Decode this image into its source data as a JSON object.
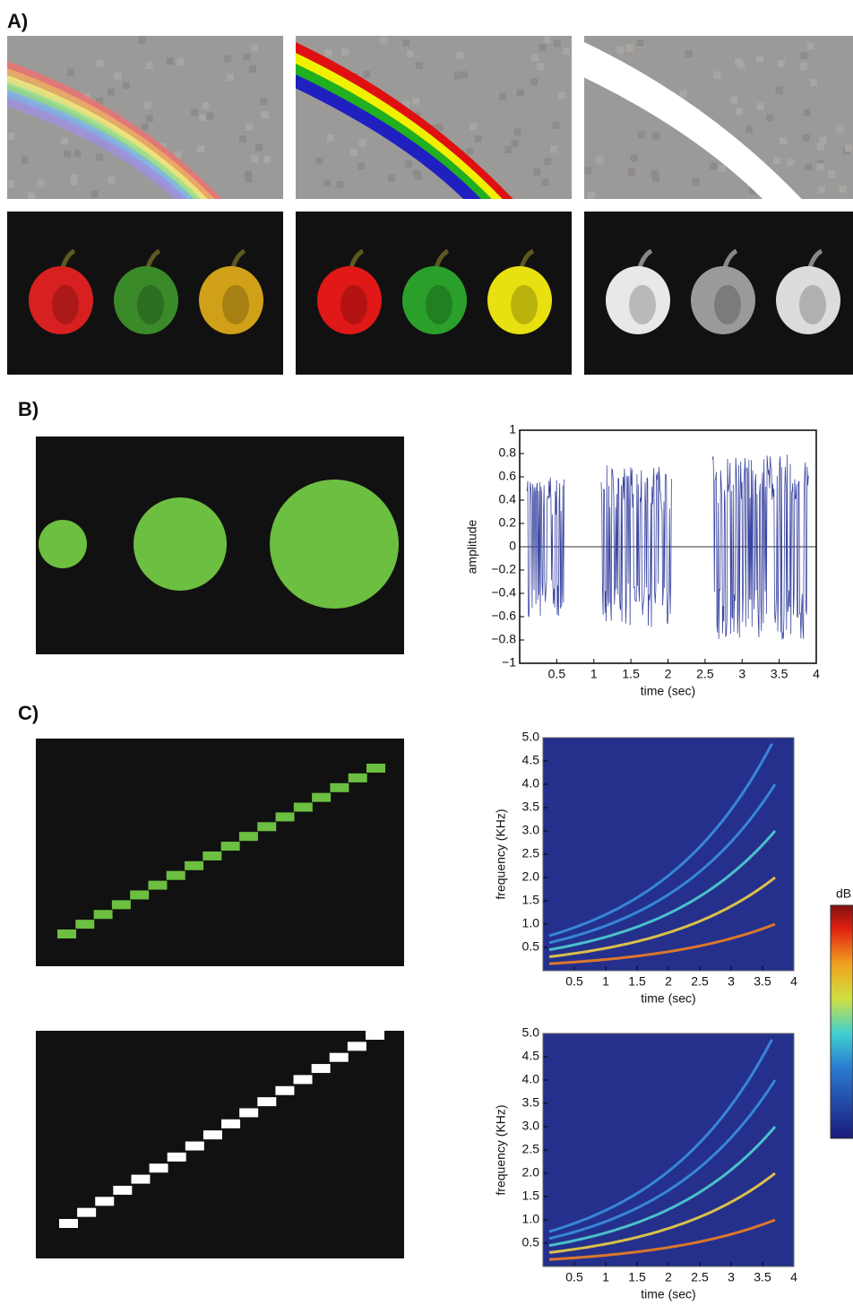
{
  "panels": {
    "a": {
      "label": "A)"
    },
    "b": {
      "label": "B)",
      "waveform": {
        "type": "waveform",
        "xlabel": "time (sec)",
        "ylabel": "amplitude",
        "color": "#3b46a0",
        "xlim": [
          0,
          4
        ],
        "ylim": [
          -1,
          1
        ],
        "xticks": [
          0.5,
          1,
          1.5,
          2,
          2.5,
          3,
          3.5,
          4
        ],
        "yticks": [
          {
            "value": -1,
            "label": "−1"
          },
          {
            "value": -0.8,
            "label": "−0.8"
          },
          {
            "value": -0.6,
            "label": "−0.6"
          },
          {
            "value": -0.4,
            "label": "−0.4"
          },
          {
            "value": -0.2,
            "label": "−0.2"
          },
          0,
          0.2,
          0.4,
          0.6,
          0.8,
          1
        ],
        "bursts": [
          {
            "start": 0.1,
            "end": 0.6,
            "amplitude": 0.6
          },
          {
            "start": 1.1,
            "end": 2.05,
            "amplitude": 0.7
          },
          {
            "start": 2.6,
            "end": 3.9,
            "amplitude": 0.8
          }
        ]
      }
    },
    "c": {
      "label": "C)",
      "spectrograms": [
        {
          "type": "spectrogram",
          "xlabel": "time (sec)",
          "ylabel": "frequency (KHz)",
          "xlim": [
            0,
            4
          ],
          "ylim": [
            0,
            5
          ],
          "xticks": [
            0.5,
            1,
            1.5,
            2,
            2.5,
            3,
            3.5,
            4
          ],
          "yticks": [
            0.5,
            {
              "value": 1,
              "label": "1.0"
            },
            1.5,
            {
              "value": 2,
              "label": "2.0"
            },
            2.5,
            {
              "value": 3,
              "label": "3.0"
            },
            3.5,
            {
              "value": 4,
              "label": "4.0"
            },
            4.5,
            {
              "value": 5,
              "label": "5.0"
            }
          ]
        },
        {
          "type": "spectrogram",
          "xlabel": "time (sec)",
          "ylabel": "frequency (KHz)",
          "xlim": [
            0,
            4
          ],
          "ylim": [
            0,
            5
          ],
          "xticks": [
            0.5,
            1,
            1.5,
            2,
            2.5,
            3,
            3.5,
            4
          ],
          "yticks": [
            0.5,
            {
              "value": 1,
              "label": "1.0"
            },
            1.5,
            {
              "value": 2,
              "label": "2.0"
            },
            2.5,
            {
              "value": 3,
              "label": "3.0"
            },
            3.5,
            {
              "value": 4,
              "label": "4.0"
            },
            4.5,
            {
              "value": 5,
              "label": "5.0"
            }
          ]
        }
      ],
      "colorbar_label": "dB"
    }
  }
}
